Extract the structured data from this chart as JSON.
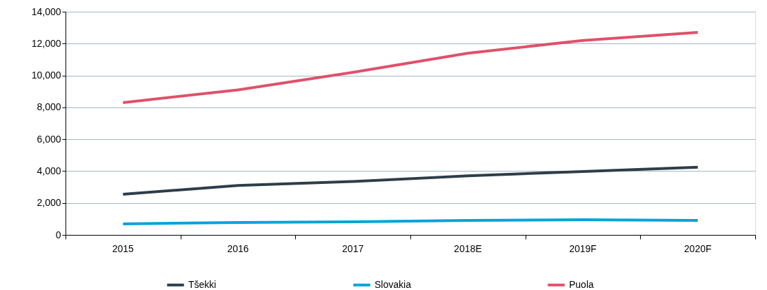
{
  "chart_data": {
    "type": "line",
    "categories": [
      "2015",
      "2016",
      "2017",
      "2018E",
      "2019F",
      "2020F"
    ],
    "series": [
      {
        "name": "Tšekki",
        "color": "#2d3e48",
        "values": [
          2550,
          3100,
          3350,
          3700,
          3980,
          4250
        ]
      },
      {
        "name": "Slovakia",
        "color": "#00a3d9",
        "values": [
          690,
          780,
          820,
          910,
          950,
          910
        ]
      },
      {
        "name": "Puola",
        "color": "#e0506a",
        "values": [
          8300,
          9100,
          10200,
          11400,
          12200,
          12700
        ]
      }
    ],
    "ylim": [
      0,
      14000
    ],
    "yticks": [
      {
        "value": 0,
        "label": "0"
      },
      {
        "value": 2000,
        "label": "2,000"
      },
      {
        "value": 4000,
        "label": "4,000"
      },
      {
        "value": 6000,
        "label": "6,000"
      },
      {
        "value": 8000,
        "label": "8,000"
      },
      {
        "value": 10000,
        "label": "10,000"
      },
      {
        "value": 12000,
        "label": "12,000"
      },
      {
        "value": 14000,
        "label": "14,000"
      }
    ],
    "grid": "y",
    "legend": "bottom",
    "marker": "none",
    "line_style": "solid"
  }
}
